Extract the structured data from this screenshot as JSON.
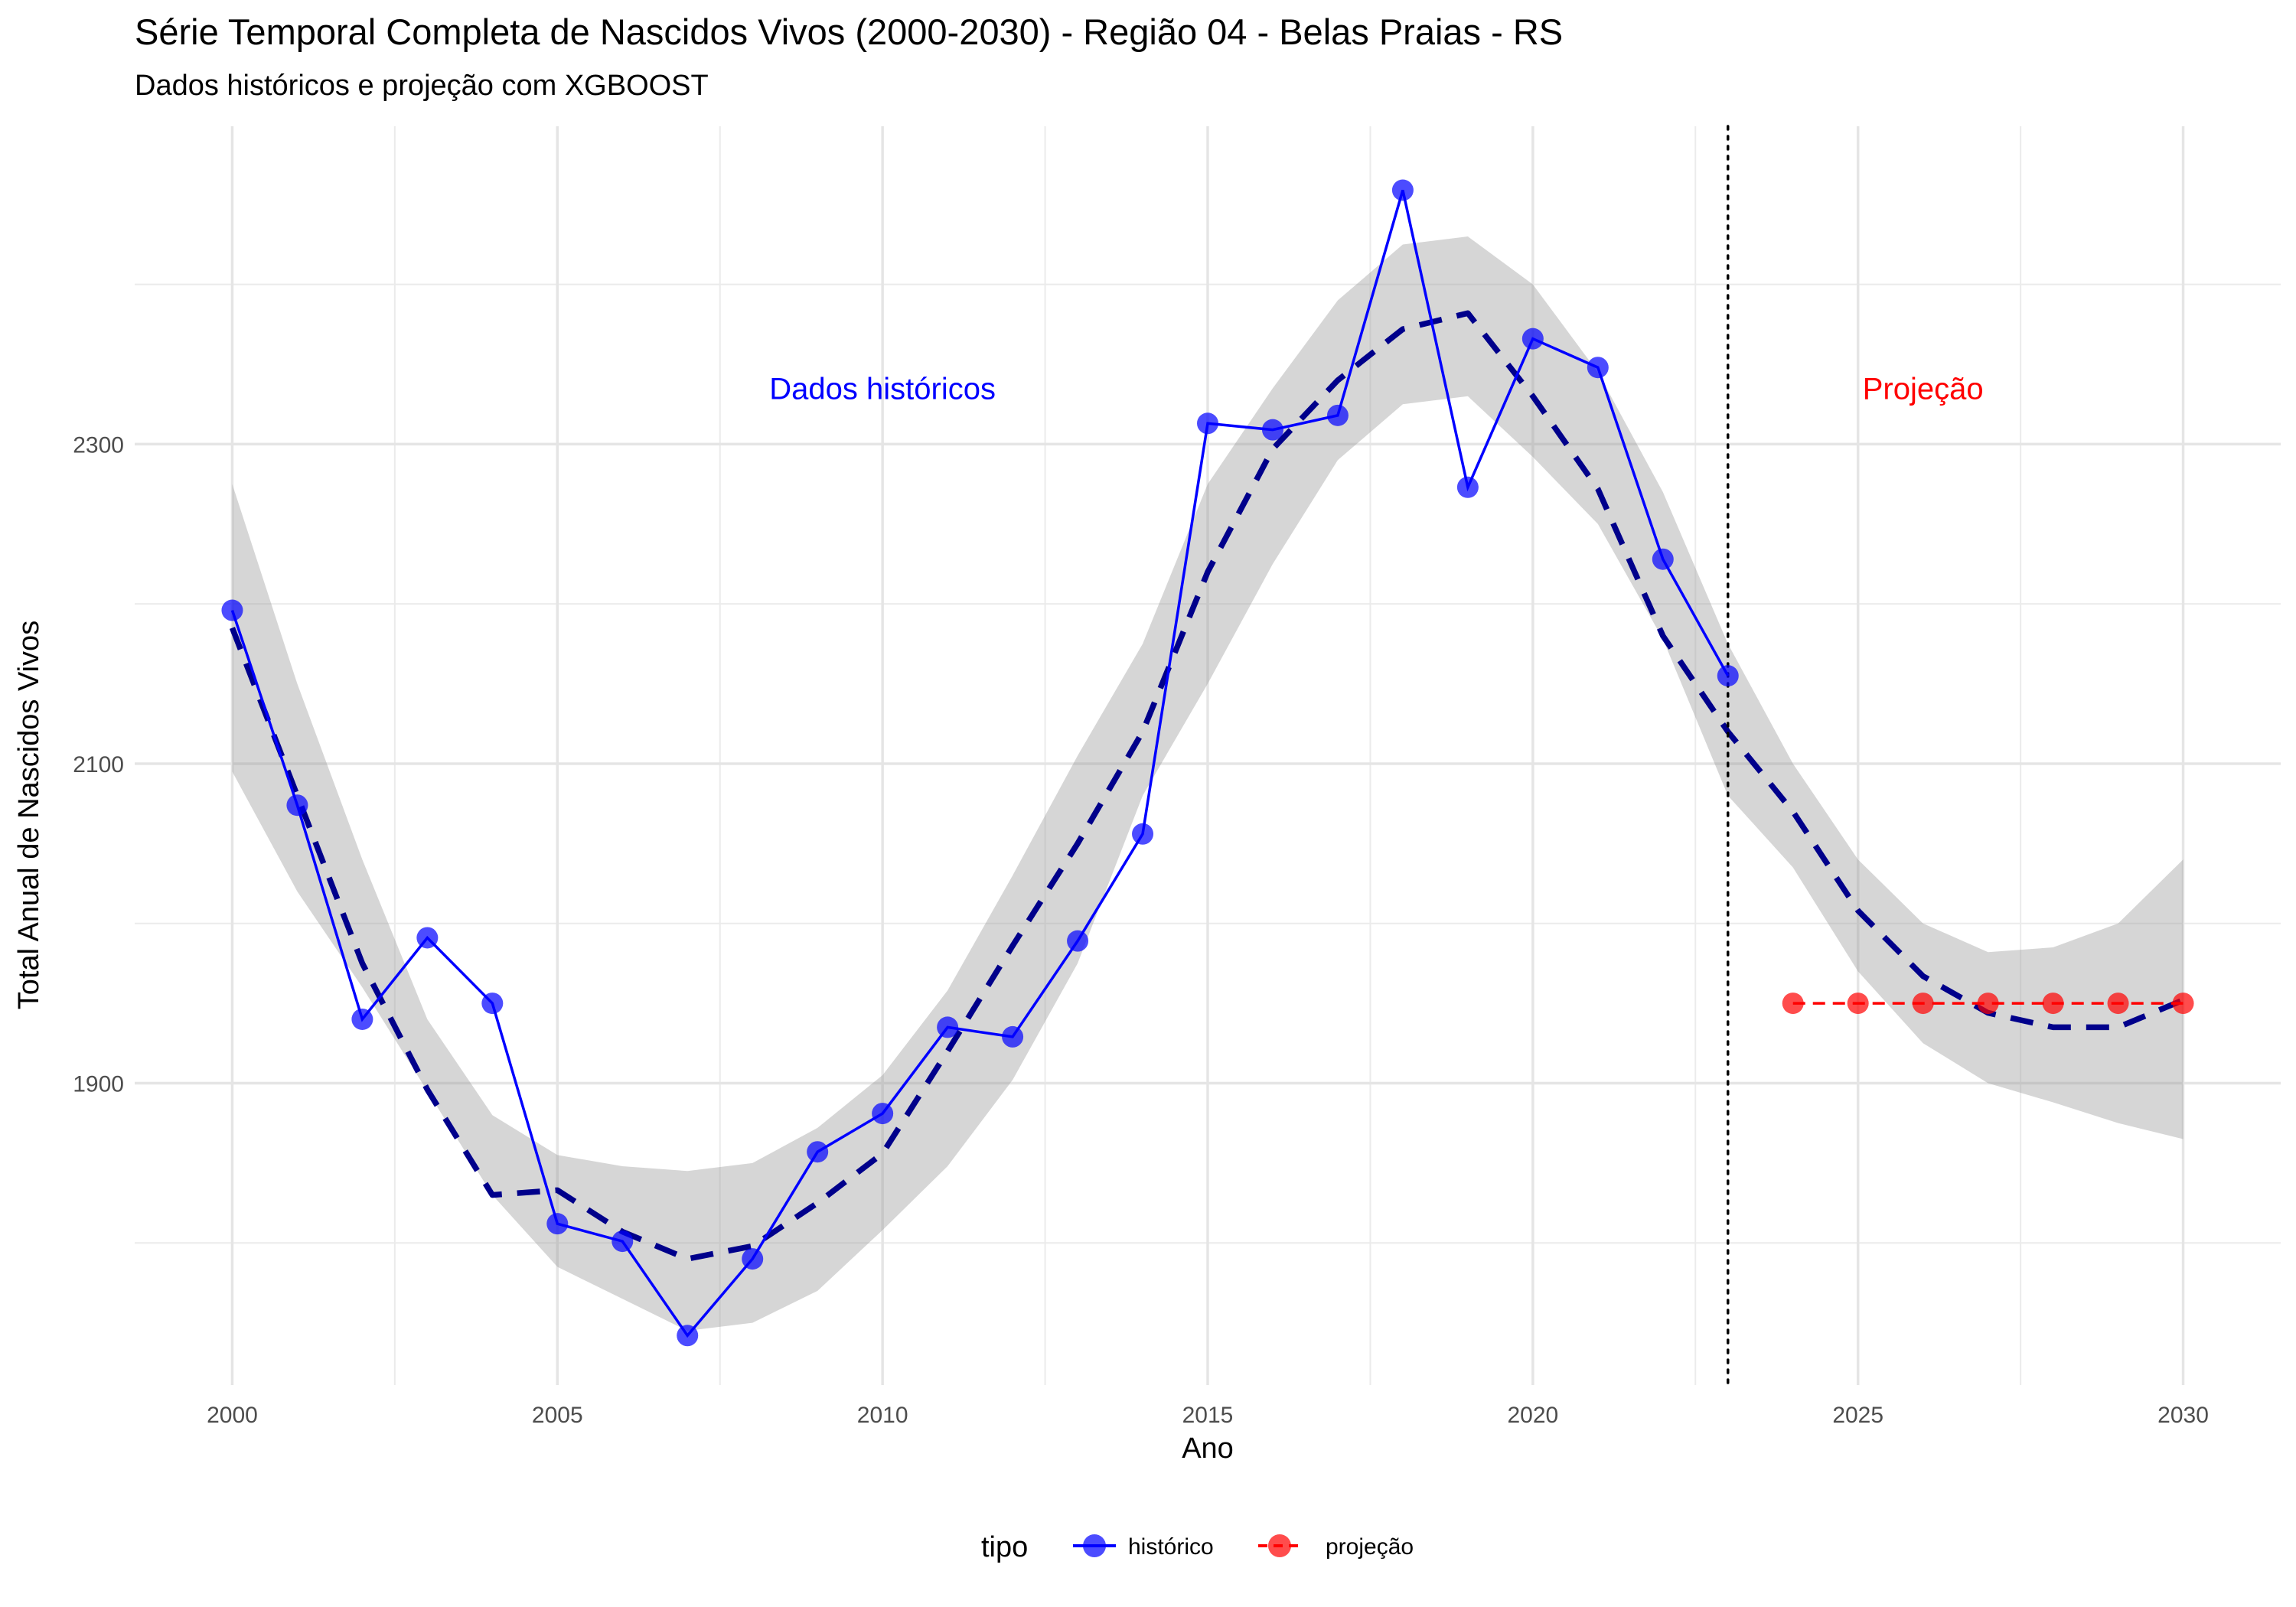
{
  "chart_data": {
    "type": "line",
    "title": "Série Temporal Completa de Nascidos Vivos (2000-2030) -  Região 04 - Belas Praias - RS",
    "subtitle": "Dados históricos e projeção com XGBOOST",
    "xlabel": "Ano",
    "ylabel": "Total Anual de Nascidos Vivos",
    "xlim": [
      1998.5,
      2031.5
    ],
    "ylim": [
      1711,
      2499
    ],
    "x_ticks": [
      2000,
      2005,
      2010,
      2015,
      2020,
      2025,
      2030
    ],
    "y_ticks": [
      1900,
      2100,
      2300
    ],
    "grid": true,
    "legend_position": "bottom",
    "legend_title": "tipo",
    "series": [
      {
        "name": "histórico",
        "color": "#0000ff",
        "x": [
          2000,
          2001,
          2002,
          2003,
          2004,
          2005,
          2006,
          2007,
          2008,
          2009,
          2010,
          2011,
          2012,
          2013,
          2014,
          2015,
          2016,
          2017,
          2018,
          2019,
          2020,
          2021,
          2022,
          2023
        ],
        "y": [
          2196,
          2074,
          1940,
          1991,
          1950,
          1812,
          1801,
          1742,
          1790,
          1857,
          1881,
          1935,
          1929,
          1989,
          2056,
          2313,
          2309,
          2318,
          2459,
          2273,
          2366,
          2348,
          2228,
          2155
        ]
      },
      {
        "name": "projeção",
        "color": "#ff0000",
        "x": [
          2024,
          2025,
          2026,
          2027,
          2028,
          2029,
          2030
        ],
        "y": [
          1950,
          1950,
          1950,
          1950,
          1950,
          1950,
          1950
        ]
      }
    ],
    "trend": {
      "color": "#00008b",
      "x": [
        2000,
        2001,
        2002,
        2003,
        2004,
        2005,
        2006,
        2007,
        2008,
        2009,
        2010,
        2011,
        2012,
        2013,
        2014,
        2015,
        2016,
        2017,
        2018,
        2019,
        2020,
        2021,
        2022,
        2023,
        2024,
        2025,
        2026,
        2027,
        2028,
        2029,
        2030
      ],
      "y": [
        2185,
        2080,
        1975,
        1896,
        1830,
        1833,
        1807,
        1790,
        1798,
        1825,
        1856,
        1920,
        1986,
        2050,
        2120,
        2220,
        2297,
        2340,
        2372,
        2382,
        2330,
        2272,
        2180,
        2120,
        2070,
        2008,
        1967,
        1944,
        1935,
        1935,
        1952
      ],
      "band_lower": [
        2095,
        2020,
        1960,
        1895,
        1830,
        1785,
        1765,
        1745,
        1750,
        1770,
        1808,
        1848,
        1902,
        1975,
        2080,
        2150,
        2225,
        2290,
        2325,
        2330,
        2292,
        2250,
        2178,
        2080,
        2035,
        1970,
        1925,
        1900,
        1888,
        1875,
        1865
      ],
      "band_upper": [
        2275,
        2150,
        2040,
        1940,
        1880,
        1855,
        1848,
        1845,
        1850,
        1872,
        1905,
        1958,
        2030,
        2105,
        2175,
        2275,
        2335,
        2390,
        2425,
        2430,
        2400,
        2345,
        2270,
        2175,
        2100,
        2040,
        2000,
        1982,
        1985,
        2000,
        2040
      ]
    },
    "vline_x": 2023,
    "annotations": [
      {
        "text": "Dados históricos",
        "x": 2010,
        "y": 2335,
        "color": "#0000ff"
      },
      {
        "text": "Projeção",
        "x": 2026,
        "y": 2335,
        "color": "#ff0000"
      }
    ]
  }
}
